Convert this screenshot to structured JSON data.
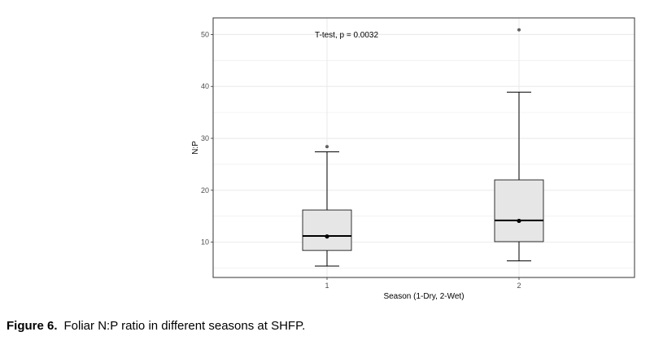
{
  "chart_data": {
    "type": "box",
    "xlabel": "Season (1-Dry, 2-Wet)",
    "ylabel": "N:P",
    "ylim": [
      3.2,
      53.2
    ],
    "yticks": [
      10,
      20,
      30,
      40,
      50
    ],
    "categories": [
      "1",
      "2"
    ],
    "grid": true,
    "annotation": "T-test, p = 0.0032",
    "boxes": [
      {
        "category": "1",
        "whisker_low": 5.4,
        "q1": 8.4,
        "median": 11.2,
        "q3": 16.2,
        "whisker_high": 27.4,
        "mean": 11.1,
        "outliers": [
          28.4
        ]
      },
      {
        "category": "2",
        "whisker_low": 6.4,
        "q1": 10.1,
        "median": 14.2,
        "q3": 22.0,
        "whisker_high": 38.9,
        "mean": 14.1,
        "outliers": [
          50.9
        ]
      }
    ],
    "colors": {
      "box_fill": "#e6e6e6",
      "box_edge": "#000000",
      "grid": "#ebebeb",
      "panel_border": "#333333"
    }
  },
  "caption": {
    "label": "Figure 6.",
    "text": "Foliar N:P ratio in different seasons at SHFP."
  }
}
